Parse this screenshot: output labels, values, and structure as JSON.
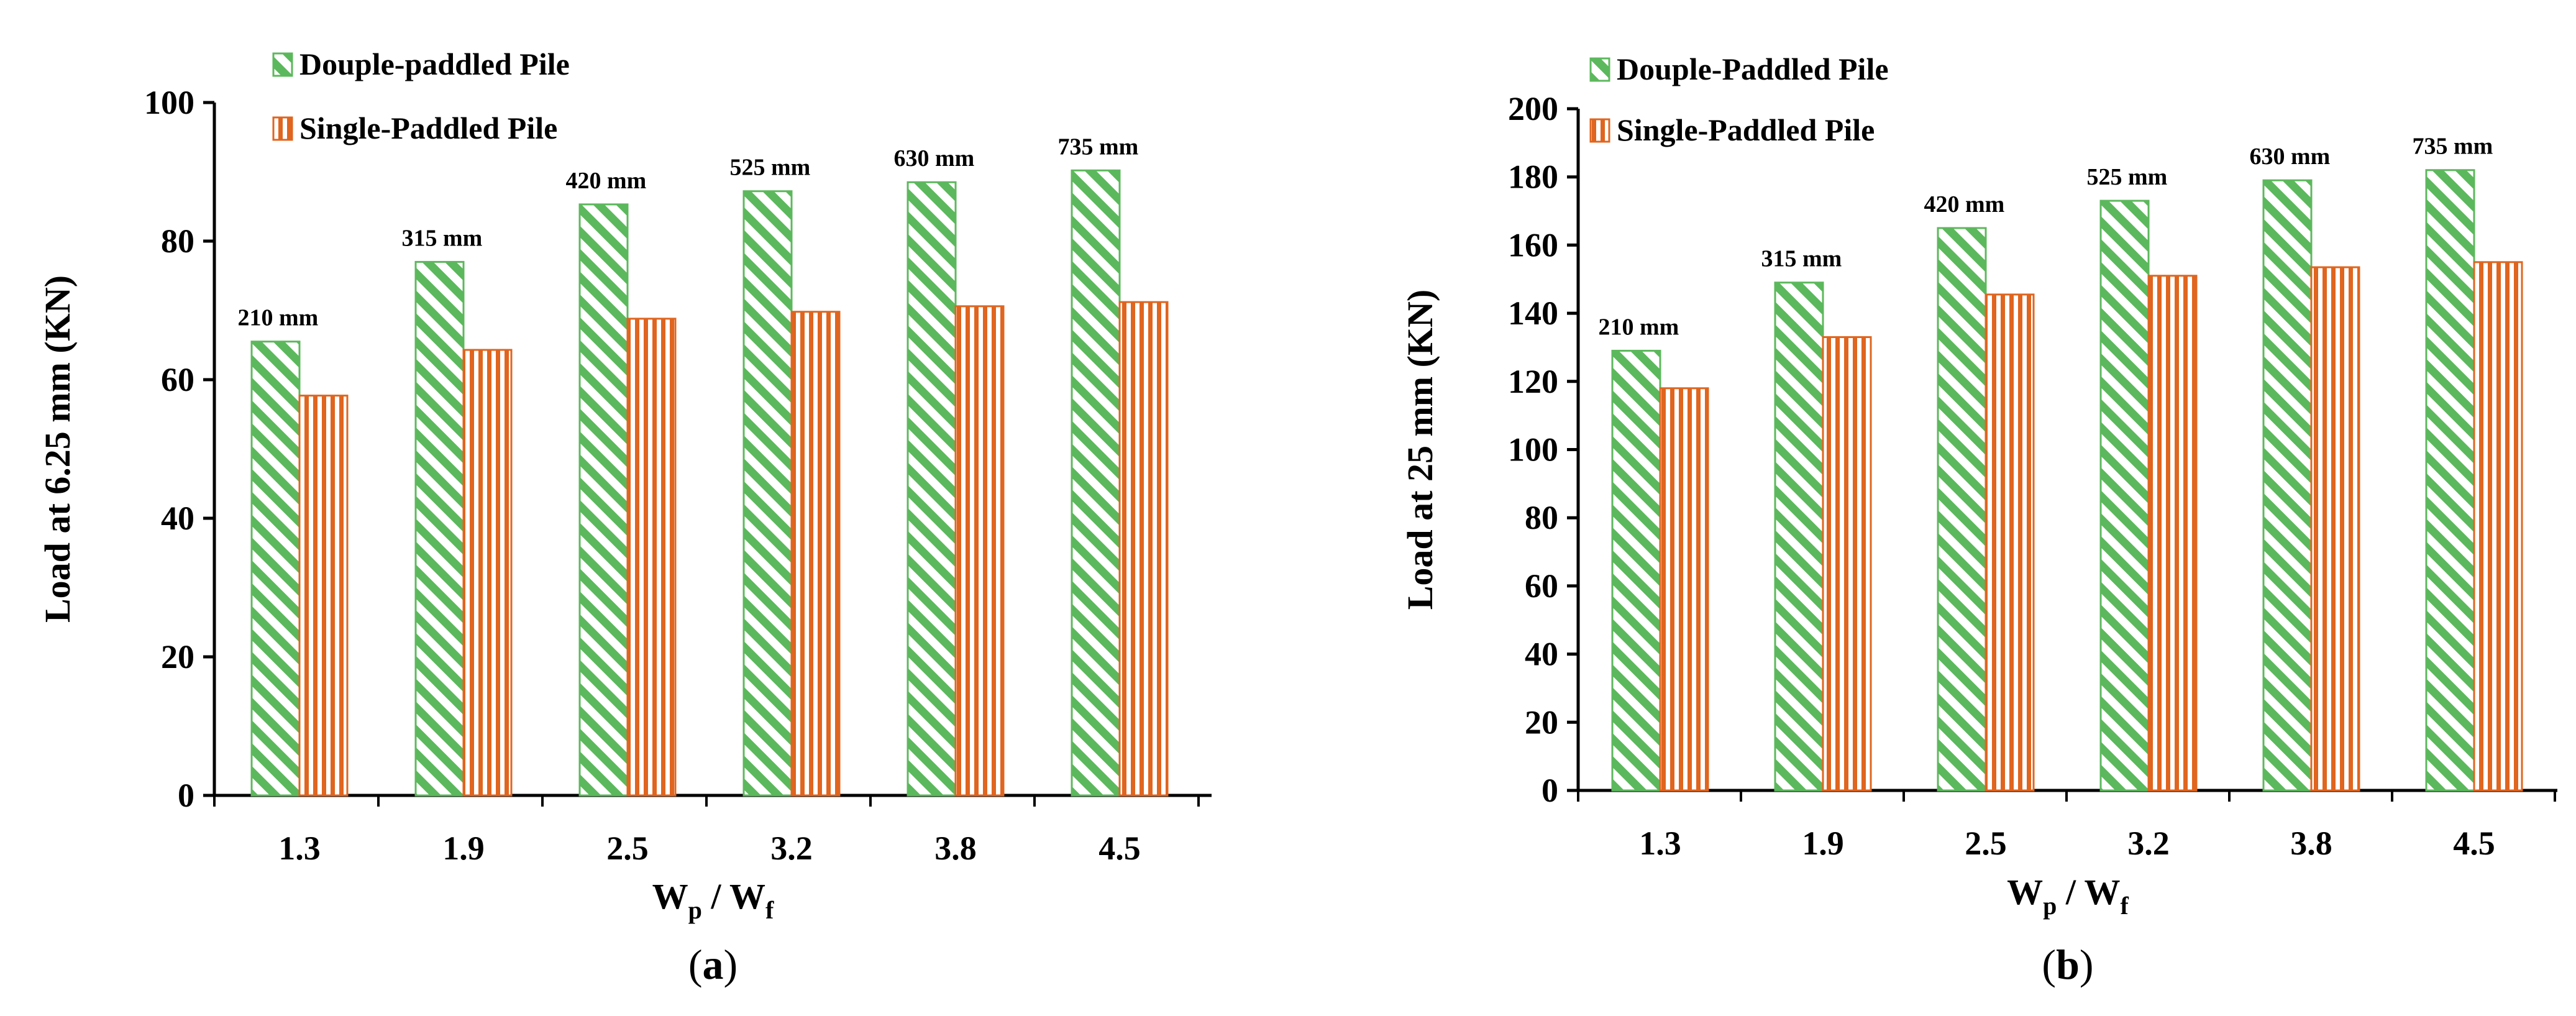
{
  "chart_data": [
    {
      "type": "bar",
      "panel_label": "a",
      "categories": [
        "1.3",
        "1.9",
        "2.5",
        "3.2",
        "3.8",
        "4.5"
      ],
      "series": [
        {
          "name": "Douple-paddled Pile",
          "values": [
            65.5,
            77,
            85.3,
            87.2,
            88.5,
            90.2
          ],
          "color": "#5cb85c"
        },
        {
          "name": "Single-Paddled Pile",
          "values": [
            57.7,
            64.3,
            68.8,
            69.8,
            70.6,
            71.2
          ],
          "color": "#e0651f"
        }
      ],
      "annotations": [
        "210 mm",
        "315 mm",
        "420 mm",
        "525 mm",
        "630 mm",
        "735 mm"
      ],
      "ylabel": "Load at 6.25 mm (KN)",
      "xlabel": {
        "base1": "W",
        "sub1": "p",
        "sep": " / ",
        "base2": "W",
        "sub2": "f"
      },
      "ylim": [
        0,
        100
      ],
      "yticks": [
        "0",
        "20",
        "40",
        "60",
        "80",
        "100"
      ],
      "grid": false,
      "legend_position": "top-left"
    },
    {
      "type": "bar",
      "panel_label": "b",
      "categories": [
        "1.3",
        "1.9",
        "2.5",
        "3.2",
        "3.8",
        "4.5"
      ],
      "series": [
        {
          "name": "Douple-Paddled Pile",
          "values": [
            129,
            149,
            165,
            173,
            179,
            182
          ],
          "color": "#5cb85c"
        },
        {
          "name": "Single-Paddled Pile",
          "values": [
            118,
            133,
            145.5,
            151,
            153.5,
            155
          ],
          "color": "#e0651f"
        }
      ],
      "annotations": [
        "210 mm",
        "315 mm",
        "420 mm",
        "525 mm",
        "630 mm",
        "735 mm"
      ],
      "ylabel": "Load at 25 mm (KN)",
      "xlabel": {
        "base1": "W",
        "sub1": "p",
        "sep": " / ",
        "base2": "W",
        "sub2": "f"
      },
      "ylim": [
        0,
        200
      ],
      "yticks": [
        "0",
        "20",
        "40",
        "60",
        "80",
        "100",
        "120",
        "140",
        "160",
        "180",
        "200"
      ],
      "grid": false,
      "legend_position": "top-left"
    }
  ]
}
